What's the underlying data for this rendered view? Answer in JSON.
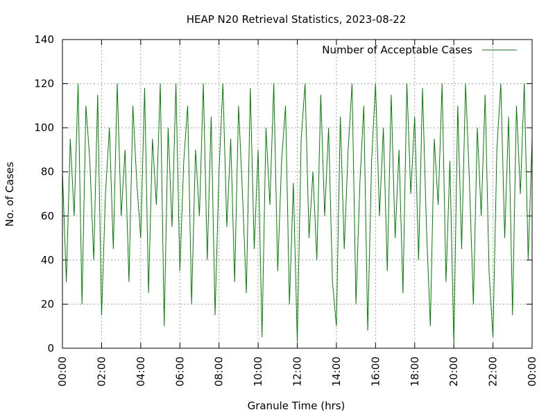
{
  "chart_data": {
    "type": "line",
    "title": "HEAP N20 Retrieval Statistics, 2023-08-22",
    "x_label": "Granule Time (hrs)",
    "y_label": "No. of Cases",
    "legend_position": "top-right",
    "grid": true,
    "xlim": [
      0,
      24
    ],
    "ylim": [
      0,
      140
    ],
    "xticks": [
      {
        "value": 0,
        "label": "00:00"
      },
      {
        "value": 2,
        "label": "02:00"
      },
      {
        "value": 4,
        "label": "04:00"
      },
      {
        "value": 6,
        "label": "06:00"
      },
      {
        "value": 8,
        "label": "08:00"
      },
      {
        "value": 10,
        "label": "10:00"
      },
      {
        "value": 12,
        "label": "12:00"
      },
      {
        "value": 14,
        "label": "14:00"
      },
      {
        "value": 16,
        "label": "16:00"
      },
      {
        "value": 18,
        "label": "18:00"
      },
      {
        "value": 20,
        "label": "20:00"
      },
      {
        "value": 22,
        "label": "22:00"
      },
      {
        "value": 24,
        "label": "00:00"
      }
    ],
    "yticks": [
      0,
      20,
      40,
      60,
      80,
      100,
      120,
      140
    ],
    "x": [
      0,
      0.2,
      0.4,
      0.6,
      0.8,
      1,
      1.2,
      1.4,
      1.6,
      1.8,
      2,
      2.2,
      2.4,
      2.6,
      2.8,
      3,
      3.2,
      3.4,
      3.6,
      3.8,
      4,
      4.2,
      4.4,
      4.6,
      4.8,
      5,
      5.2,
      5.4,
      5.6,
      5.8,
      6,
      6.2,
      6.4,
      6.6,
      6.8,
      7,
      7.2,
      7.4,
      7.6,
      7.8,
      8,
      8.2,
      8.4,
      8.6,
      8.8,
      9,
      9.2,
      9.4,
      9.6,
      9.8,
      10,
      10.2,
      10.4,
      10.6,
      10.8,
      11,
      11.2,
      11.4,
      11.6,
      11.8,
      12,
      12.2,
      12.4,
      12.6,
      12.8,
      13,
      13.2,
      13.4,
      13.6,
      13.8,
      14,
      14.2,
      14.4,
      14.6,
      14.8,
      15,
      15.2,
      15.4,
      15.6,
      15.8,
      16,
      16.2,
      16.4,
      16.6,
      16.8,
      17,
      17.2,
      17.4,
      17.6,
      17.8,
      18,
      18.2,
      18.4,
      18.6,
      18.8,
      19,
      19.2,
      19.4,
      19.6,
      19.8,
      20,
      20.2,
      20.4,
      20.6,
      20.8,
      21,
      21.2,
      21.4,
      21.6,
      21.8,
      22,
      22.2,
      22.4,
      22.6,
      22.8,
      23,
      23.2,
      23.4,
      23.6,
      23.8,
      24
    ],
    "series": [
      {
        "name": "Number of Acceptable Cases",
        "color": "#008000",
        "values": [
          80,
          30,
          95,
          60,
          120,
          20,
          110,
          85,
          40,
          115,
          15,
          70,
          100,
          45,
          120,
          60,
          90,
          30,
          110,
          75,
          50,
          118,
          25,
          95,
          65,
          120,
          10,
          100,
          55,
          120,
          35,
          85,
          110,
          20,
          90,
          60,
          120,
          40,
          105,
          15,
          80,
          120,
          55,
          95,
          30,
          110,
          70,
          25,
          118,
          45,
          90,
          5,
          100,
          65,
          120,
          35,
          85,
          110,
          20,
          75,
          3,
          95,
          120,
          50,
          80,
          40,
          115,
          60,
          100,
          30,
          10,
          105,
          45,
          90,
          120,
          20,
          75,
          110,
          8,
          85,
          120,
          60,
          100,
          35,
          115,
          50,
          90,
          25,
          120,
          70,
          105,
          40,
          118,
          55,
          10,
          95,
          65,
          120,
          30,
          85,
          2,
          110,
          45,
          120,
          75,
          20,
          100,
          60,
          115,
          35,
          5,
          90,
          120,
          50,
          105,
          15,
          110,
          70,
          120,
          40,
          95
        ]
      }
    ]
  }
}
